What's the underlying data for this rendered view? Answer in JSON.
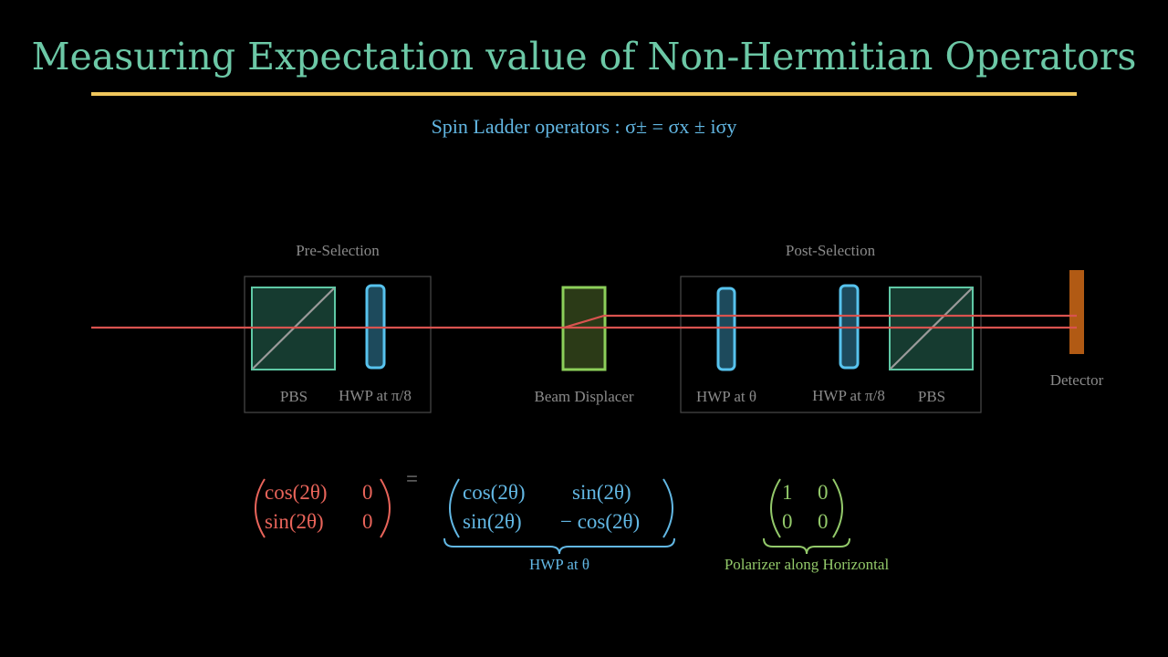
{
  "title": "Measuring Expectation value of Non-Hermitian Operators",
  "subtitle": "Spin Ladder operators : σ± = σx ± iσy",
  "diagram": {
    "pre_selection_label": "Pre-Selection",
    "post_selection_label": "Post-Selection",
    "pbs_left_label": "PBS",
    "hwp_pi8_left_label": "HWP at π/8",
    "beam_displacer_label": "Beam Displacer",
    "hwp_theta_label": "HWP at θ",
    "hwp_pi8_right_label": "HWP at π/8",
    "pbs_right_label": "PBS",
    "detector_label": "Detector"
  },
  "equation": {
    "lhs": {
      "r1c1": "cos(2θ)",
      "r1c2": "0",
      "r2c1": "sin(2θ)",
      "r2c2": "0"
    },
    "equals": "=",
    "hwp": {
      "r1c1": "cos(2θ)",
      "r1c2": "sin(2θ)",
      "r2c1": "sin(2θ)",
      "r2c2": "− cos(2θ)"
    },
    "hwp_label": "HWP at θ",
    "pol": {
      "r1c1": "1",
      "r1c2": "0",
      "r2c1": "0",
      "r2c2": "0"
    },
    "pol_label": "Polarizer along Horizontal"
  },
  "colors": {
    "title": "#6cc8a6",
    "rule": "#f0c75c",
    "beam": "#d9534f",
    "pbs": "#5fc9a6",
    "waveplate": "#57c3ee",
    "displacer": "#8ccf5a",
    "detector": "#b15a14",
    "lhs_matrix": "#e8645a",
    "hwp_matrix": "#62b7e3",
    "pol_matrix": "#93c96a"
  }
}
